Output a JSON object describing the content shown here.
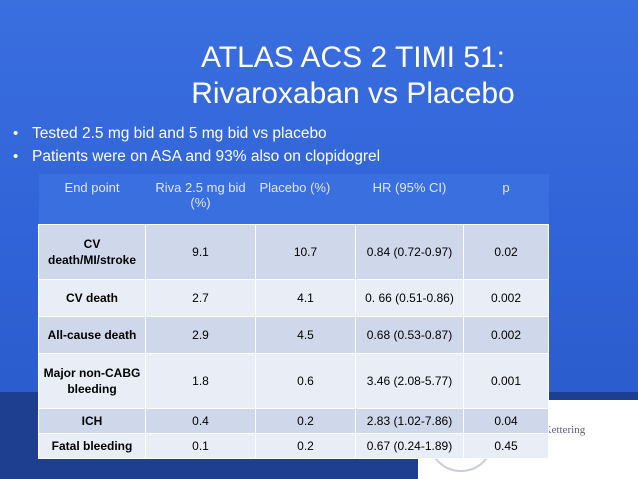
{
  "slide": {
    "title_line1": "ATLAS ACS 2 TIMI 51:",
    "title_line2": "Rivaroxaban vs Placebo",
    "bullets": [
      "Tested 2.5 mg bid and 5 mg bid vs placebo",
      "Patients were on ASA and 93% also on clopidogrel"
    ],
    "bullet_glyph": "•"
  },
  "table": {
    "headers": [
      "End point",
      "Riva 2.5 mg bid (%)",
      "Placebo (%)",
      "HR (95% CI)",
      "p"
    ],
    "rows": [
      [
        "CV death/MI/stroke",
        "9.1",
        "10.7",
        "0.84 (0.72-0.97)",
        "0.02"
      ],
      [
        "CV death",
        "2.7",
        "4.1",
        "0. 66 (0.51-0.86)",
        "0.002"
      ],
      [
        "All-cause death",
        "2.9",
        "4.5",
        "0.68 (0.53-0.87)",
        "0.002"
      ],
      [
        "Major non-CABG bleeding",
        "1.8",
        "0.6",
        "3.46 (2.08-5.77)",
        "0.001"
      ],
      [
        "ICH",
        "0.4",
        "0.2",
        "2.83 (1.02-7.86)",
        "0.04"
      ],
      [
        "Fatal bleeding",
        "0.1",
        "0.2",
        "0.67 (0.24-1.89)",
        "0.45"
      ]
    ]
  },
  "footer": {
    "logo_text": "-Kettering"
  },
  "colors": {
    "background": "#2f62d6",
    "band": "#1e3f8f",
    "row_odd": "#cfd7ea",
    "row_even": "#e9edf6",
    "header_text": "#dfe8ff"
  }
}
